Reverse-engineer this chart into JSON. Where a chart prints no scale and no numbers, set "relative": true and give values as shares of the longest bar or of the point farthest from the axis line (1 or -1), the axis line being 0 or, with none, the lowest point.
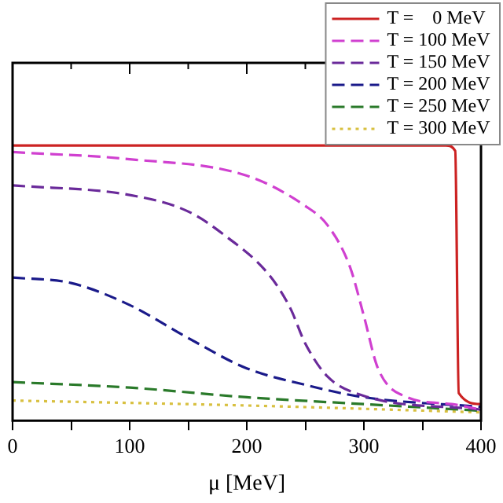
{
  "chart_data": {
    "type": "line",
    "relative": true,
    "xlabel": "μ [MeV]",
    "xlim": [
      0,
      400
    ],
    "xticks": [
      0,
      {
        "value": 50,
        "label": null
      },
      100,
      {
        "value": 150,
        "label": null
      },
      200,
      {
        "value": 250,
        "label": null
      },
      300,
      {
        "value": 350,
        "label": null
      },
      400
    ],
    "legend": "top right",
    "marker": "none",
    "grid": false,
    "series": [
      {
        "name": "T =    0 MeV",
        "color": "#cc2222",
        "line_style": "solid",
        "x": [
          0,
          100,
          200,
          300,
          370,
          378,
          381,
          400
        ],
        "values": [
          1,
          1,
          1,
          1,
          1,
          0.98,
          0.1,
          0.06
        ]
      },
      {
        "name": "T = 100 MeV",
        "color": "#d040d0",
        "line_style": "dashed",
        "x": [
          0,
          100,
          200,
          250,
          269,
          288,
          300,
          312,
          337,
          375,
          400
        ],
        "values": [
          0.976,
          0.95,
          0.89,
          0.78,
          0.71,
          0.56,
          0.38,
          0.19,
          0.085,
          0.06,
          0.04
        ]
      },
      {
        "name": "T = 150 MeV",
        "color": "#6a2a9a",
        "line_style": "dashed",
        "x": [
          0,
          100,
          150,
          179,
          219,
          237,
          250,
          269,
          300,
          400
        ],
        "values": [
          0.855,
          0.82,
          0.76,
          0.68,
          0.53,
          0.41,
          0.28,
          0.16,
          0.09,
          0.04
        ]
      },
      {
        "name": "T = 200 MeV",
        "color": "#1a1a8a",
        "line_style": "dashed",
        "x": [
          0,
          50,
          100,
          150,
          200,
          250,
          300,
          400
        ],
        "values": [
          0.52,
          0.5,
          0.42,
          0.3,
          0.19,
          0.13,
          0.085,
          0.05
        ]
      },
      {
        "name": "T = 250 MeV",
        "color": "#2a7a2a",
        "line_style": "dashed",
        "x": [
          0,
          100,
          200,
          300,
          400
        ],
        "values": [
          0.14,
          0.12,
          0.085,
          0.06,
          0.036
        ]
      },
      {
        "name": "T = 300 MeV",
        "color": "#d8c040",
        "line_style": "dotted",
        "x": [
          0,
          200,
          400
        ],
        "values": [
          0.073,
          0.055,
          0.03
        ]
      }
    ]
  }
}
